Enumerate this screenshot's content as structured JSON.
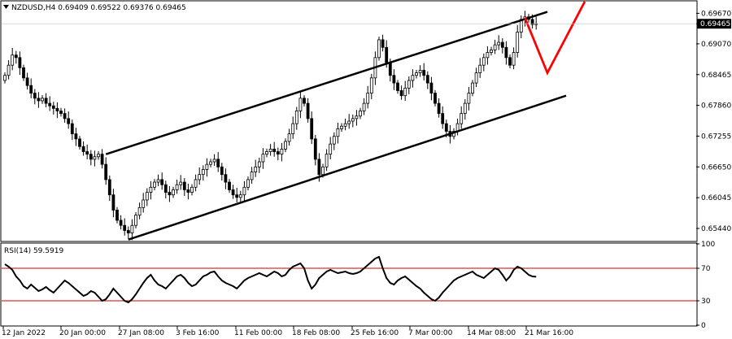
{
  "header": {
    "symbol_line": "NZDUSD,H4  0.69409 0.69522 0.69376 0.69465"
  },
  "colors": {
    "bull_candle": "#000000",
    "bear_candle": "#000000",
    "channel_line": "#000000",
    "projection_line": "#ff0000",
    "price_tag_bg": "#000000",
    "price_tag_fg": "#ffffff",
    "rsi_line": "#000000",
    "rsi_level": "#cc0000",
    "axis_text": "#000000"
  },
  "icons": {
    "menu": "triangle-down-icon"
  },
  "chart_data": [
    {
      "type": "candlestick",
      "title": "NZDUSD,H4",
      "ylim": [
        0.652,
        0.699
      ],
      "y_ticks": [
        "0.69670",
        "0.69465",
        "0.69070",
        "0.68465",
        "0.67860",
        "0.67255",
        "0.66650",
        "0.66045",
        "0.65440"
      ],
      "x_ticks": [
        "12 Jan 2022",
        "20 Jan 00:00",
        "27 Jan 08:00",
        "3 Feb 16:00",
        "11 Feb 00:00",
        "18 Feb 08:00",
        "25 Feb 16:00",
        "7 Mar 00:00",
        "14 Mar 08:00",
        "21 Mar 16:00"
      ],
      "last_price": "0.69465",
      "close_series": [
        0.6845,
        0.6865,
        0.6885,
        0.688,
        0.686,
        0.684,
        0.6825,
        0.681,
        0.68,
        0.6795,
        0.68,
        0.679,
        0.6785,
        0.678,
        0.6775,
        0.677,
        0.676,
        0.675,
        0.673,
        0.672,
        0.6705,
        0.6695,
        0.669,
        0.668,
        0.6685,
        0.669,
        0.667,
        0.664,
        0.661,
        0.658,
        0.656,
        0.655,
        0.654,
        0.6535,
        0.655,
        0.657,
        0.6585,
        0.66,
        0.6615,
        0.6625,
        0.6635,
        0.664,
        0.663,
        0.6615,
        0.661,
        0.662,
        0.663,
        0.6635,
        0.662,
        0.6615,
        0.6625,
        0.664,
        0.665,
        0.666,
        0.667,
        0.6675,
        0.668,
        0.6665,
        0.665,
        0.6635,
        0.662,
        0.661,
        0.6605,
        0.661,
        0.6625,
        0.664,
        0.6655,
        0.6665,
        0.6675,
        0.669,
        0.6695,
        0.67,
        0.6695,
        0.669,
        0.67,
        0.6715,
        0.673,
        0.675,
        0.6775,
        0.68,
        0.679,
        0.676,
        0.672,
        0.668,
        0.665,
        0.6665,
        0.669,
        0.671,
        0.6725,
        0.674,
        0.6745,
        0.675,
        0.6755,
        0.676,
        0.6765,
        0.6775,
        0.679,
        0.681,
        0.684,
        0.688,
        0.6915,
        0.69,
        0.687,
        0.6845,
        0.683,
        0.6815,
        0.6805,
        0.682,
        0.6835,
        0.6845,
        0.685,
        0.6855,
        0.6845,
        0.683,
        0.681,
        0.679,
        0.677,
        0.675,
        0.6735,
        0.6725,
        0.6735,
        0.675,
        0.677,
        0.679,
        0.681,
        0.683,
        0.685,
        0.6865,
        0.688,
        0.689,
        0.6895,
        0.6905,
        0.691,
        0.69,
        0.688,
        0.6865,
        0.689,
        0.693,
        0.6955,
        0.696,
        0.6955,
        0.6945,
        0.69465
      ],
      "upper_channel": {
        "from": [
          0.669,
          27
        ],
        "to": [
          0.697,
          145
        ]
      },
      "lower_channel": {
        "from": [
          0.6522,
          33
        ],
        "to": [
          0.6805,
          150
        ]
      },
      "projection": [
        [
          0.6958,
          139
        ],
        [
          0.685,
          145
        ],
        [
          0.699,
          155
        ]
      ]
    },
    {
      "type": "line",
      "title": "RSI(14) 59.5919",
      "ylim": [
        0,
        100
      ],
      "y_ticks": [
        "100",
        "70",
        "30",
        "0"
      ],
      "levels": [
        70,
        30
      ],
      "values": [
        75,
        72,
        68,
        60,
        55,
        48,
        45,
        50,
        46,
        42,
        44,
        47,
        43,
        40,
        45,
        50,
        55,
        52,
        48,
        44,
        40,
        36,
        38,
        42,
        40,
        35,
        30,
        32,
        38,
        45,
        40,
        35,
        30,
        28,
        32,
        38,
        45,
        52,
        58,
        62,
        55,
        50,
        48,
        45,
        50,
        55,
        60,
        62,
        58,
        52,
        48,
        50,
        55,
        60,
        62,
        65,
        66,
        60,
        55,
        52,
        50,
        48,
        45,
        50,
        55,
        58,
        60,
        62,
        64,
        62,
        60,
        63,
        66,
        64,
        60,
        62,
        68,
        72,
        74,
        76,
        70,
        55,
        45,
        50,
        58,
        62,
        66,
        68,
        66,
        64,
        65,
        66,
        64,
        63,
        64,
        66,
        70,
        74,
        78,
        82,
        84,
        70,
        58,
        52,
        50,
        55,
        58,
        60,
        56,
        52,
        48,
        45,
        40,
        36,
        32,
        30,
        34,
        40,
        45,
        50,
        55,
        58,
        60,
        62,
        64,
        66,
        62,
        60,
        58,
        62,
        66,
        70,
        68,
        62,
        55,
        60,
        68,
        72,
        70,
        66,
        62,
        60,
        59.59
      ]
    }
  ]
}
